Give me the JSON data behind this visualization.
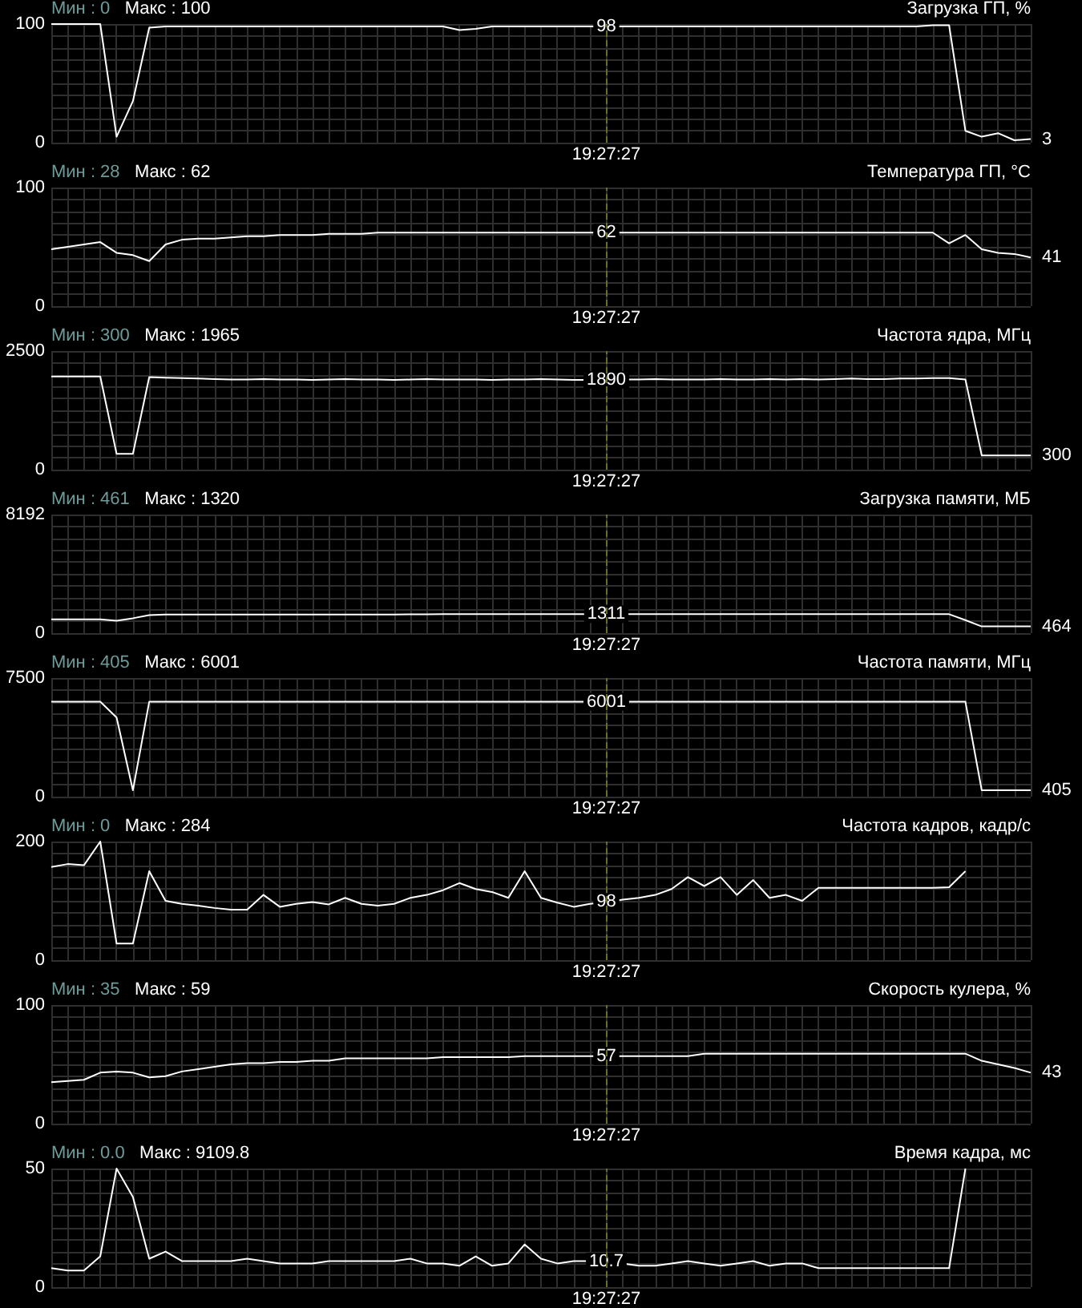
{
  "chart_data": [
    {
      "type": "line",
      "title": "Загрузка ГП, %",
      "annotations": [
        "Мин : 0",
        "Макс : 100"
      ],
      "categories": [
        null,
        null,
        null,
        null,
        null,
        null,
        null,
        null,
        null,
        null,
        null,
        null,
        null,
        null,
        null,
        null,
        null,
        null,
        null,
        null,
        null,
        null,
        null,
        null,
        null,
        null,
        null,
        null,
        null,
        null,
        null,
        null,
        null,
        null,
        "19:27:27",
        null,
        null,
        null,
        null,
        null,
        null,
        null,
        null,
        null,
        null,
        null,
        null,
        null,
        null,
        null,
        null,
        null,
        null,
        null,
        null,
        null,
        null,
        null,
        null,
        null,
        null
      ],
      "values": [
        100,
        100,
        100,
        100,
        5,
        35,
        97,
        98,
        98,
        98,
        98,
        98,
        98,
        98,
        98,
        98,
        98,
        98,
        98,
        98,
        98,
        98,
        98,
        98,
        98,
        95,
        96,
        98,
        98,
        98,
        98,
        98,
        98,
        98,
        98,
        98,
        98,
        98,
        98,
        98,
        98,
        98,
        98,
        98,
        98,
        98,
        98,
        98,
        98,
        98,
        98,
        98,
        98,
        98,
        99,
        99,
        10,
        5,
        8,
        2,
        3
      ],
      "value_labels": [
        null,
        null,
        null,
        null,
        null,
        null,
        null,
        null,
        null,
        null,
        null,
        null,
        null,
        null,
        null,
        null,
        null,
        null,
        null,
        null,
        null,
        null,
        null,
        null,
        null,
        null,
        null,
        null,
        null,
        null,
        null,
        null,
        null,
        null,
        "98",
        null,
        null,
        null,
        null,
        null,
        null,
        null,
        null,
        null,
        null,
        null,
        null,
        null,
        null,
        null,
        null,
        null,
        null,
        null,
        null,
        null,
        null,
        null,
        null,
        null,
        "3"
      ],
      "color": "#ffffff",
      "ylim": [
        0,
        100
      ],
      "yticks": [
        0,
        {
          "value": 10,
          "label": null
        },
        {
          "value": 20,
          "label": null
        },
        {
          "value": 30,
          "label": null
        },
        {
          "value": 40,
          "label": null
        },
        {
          "value": 50,
          "label": null
        },
        {
          "value": 60,
          "label": null
        },
        {
          "value": 70,
          "label": null
        },
        {
          "value": 80,
          "label": null
        },
        {
          "value": 90,
          "label": null
        },
        100
      ],
      "grid": true,
      "marker": "none",
      "line_style": "solid",
      "ref_lines": [
        {
          "axis": "x",
          "value": "19:27:27",
          "color": "#6b6b2a",
          "line_style": "dashed"
        }
      ]
    },
    {
      "type": "line",
      "title": "Температура ГП, °C",
      "annotations": [
        "Мин : 28",
        "Макс : 62"
      ],
      "categories": [
        null,
        null,
        null,
        null,
        null,
        null,
        null,
        null,
        null,
        null,
        null,
        null,
        null,
        null,
        null,
        null,
        null,
        null,
        null,
        null,
        null,
        null,
        null,
        null,
        null,
        null,
        null,
        null,
        null,
        null,
        null,
        null,
        null,
        null,
        "19:27:27",
        null,
        null,
        null,
        null,
        null,
        null,
        null,
        null,
        null,
        null,
        null,
        null,
        null,
        null,
        null,
        null,
        null,
        null,
        null,
        null,
        null,
        null,
        null,
        null,
        null,
        null
      ],
      "values": [
        48,
        50,
        52,
        54,
        45,
        43,
        38,
        52,
        56,
        57,
        57,
        58,
        59,
        59,
        60,
        60,
        60,
        61,
        61,
        61,
        62,
        62,
        62,
        62,
        62,
        62,
        62,
        62,
        62,
        62,
        62,
        62,
        62,
        62,
        62,
        62,
        62,
        62,
        62,
        62,
        62,
        62,
        62,
        62,
        62,
        62,
        62,
        62,
        62,
        62,
        62,
        62,
        62,
        62,
        62,
        53,
        60,
        48,
        45,
        44,
        41
      ],
      "value_labels": [
        null,
        null,
        null,
        null,
        null,
        null,
        null,
        null,
        null,
        null,
        null,
        null,
        null,
        null,
        null,
        null,
        null,
        null,
        null,
        null,
        null,
        null,
        null,
        null,
        null,
        null,
        null,
        null,
        null,
        null,
        null,
        null,
        null,
        null,
        "62",
        null,
        null,
        null,
        null,
        null,
        null,
        null,
        null,
        null,
        null,
        null,
        null,
        null,
        null,
        null,
        null,
        null,
        null,
        null,
        null,
        null,
        null,
        null,
        null,
        null,
        "41"
      ],
      "color": "#ffffff",
      "ylim": [
        0,
        100
      ],
      "yticks": [
        0,
        {
          "value": 10,
          "label": null
        },
        {
          "value": 20,
          "label": null
        },
        {
          "value": 30,
          "label": null
        },
        {
          "value": 40,
          "label": null
        },
        {
          "value": 50,
          "label": null
        },
        {
          "value": 60,
          "label": null
        },
        {
          "value": 70,
          "label": null
        },
        {
          "value": 80,
          "label": null
        },
        {
          "value": 90,
          "label": null
        },
        100
      ],
      "grid": true,
      "marker": "none",
      "line_style": "solid",
      "ref_lines": [
        {
          "axis": "x",
          "value": "19:27:27",
          "color": "#6b6b2a",
          "line_style": "dashed"
        }
      ]
    },
    {
      "type": "line",
      "title": "Частота ядра, МГц",
      "annotations": [
        "Мин : 300",
        "Макс : 1965"
      ],
      "categories": [
        null,
        null,
        null,
        null,
        null,
        null,
        null,
        null,
        null,
        null,
        null,
        null,
        null,
        null,
        null,
        null,
        null,
        null,
        null,
        null,
        null,
        null,
        null,
        null,
        null,
        null,
        null,
        null,
        null,
        null,
        null,
        null,
        null,
        null,
        "19:27:27",
        null,
        null,
        null,
        null,
        null,
        null,
        null,
        null,
        null,
        null,
        null,
        null,
        null,
        null,
        null,
        null,
        null,
        null,
        null,
        null,
        null,
        null,
        null,
        null,
        null,
        null
      ],
      "values": [
        1965,
        1965,
        1965,
        1965,
        334,
        334,
        1950,
        1940,
        1930,
        1920,
        1910,
        1900,
        1900,
        1910,
        1900,
        1900,
        1890,
        1900,
        1910,
        1900,
        1900,
        1890,
        1900,
        1910,
        1900,
        1900,
        1900,
        1890,
        1900,
        1900,
        1910,
        1900,
        1890,
        1890,
        1890,
        1900,
        1900,
        1910,
        1900,
        1900,
        1900,
        1910,
        1900,
        1900,
        1910,
        1900,
        1910,
        1900,
        1910,
        1920,
        1910,
        1910,
        1920,
        1920,
        1930,
        1930,
        1900,
        300,
        300,
        300,
        300
      ],
      "value_labels": [
        null,
        null,
        null,
        null,
        null,
        null,
        null,
        null,
        null,
        null,
        null,
        null,
        null,
        null,
        null,
        null,
        null,
        null,
        null,
        null,
        null,
        null,
        null,
        null,
        null,
        null,
        null,
        null,
        null,
        null,
        null,
        null,
        null,
        null,
        "1890",
        null,
        null,
        null,
        null,
        null,
        null,
        null,
        null,
        null,
        null,
        null,
        null,
        null,
        null,
        null,
        null,
        null,
        null,
        null,
        null,
        null,
        null,
        null,
        null,
        null,
        "300"
      ],
      "color": "#ffffff",
      "ylim": [
        0,
        2500
      ],
      "yticks": [
        0,
        {
          "value": 250,
          "label": null
        },
        {
          "value": 500,
          "label": null
        },
        {
          "value": 750,
          "label": null
        },
        {
          "value": 1000,
          "label": null
        },
        {
          "value": 1250,
          "label": null
        },
        {
          "value": 1500,
          "label": null
        },
        {
          "value": 1750,
          "label": null
        },
        {
          "value": 2000,
          "label": null
        },
        {
          "value": 2250,
          "label": null
        },
        2500
      ],
      "grid": true,
      "marker": "none",
      "line_style": "solid",
      "ref_lines": [
        {
          "axis": "x",
          "value": "19:27:27",
          "color": "#6b6b2a",
          "line_style": "dashed"
        }
      ]
    },
    {
      "type": "line",
      "title": "Загрузка памяти, МБ",
      "annotations": [
        "Мин : 461",
        "Макс : 1320"
      ],
      "categories": [
        null,
        null,
        null,
        null,
        null,
        null,
        null,
        null,
        null,
        null,
        null,
        null,
        null,
        null,
        null,
        null,
        null,
        null,
        null,
        null,
        null,
        null,
        null,
        null,
        null,
        null,
        null,
        null,
        null,
        null,
        null,
        null,
        null,
        null,
        "19:27:27",
        null,
        null,
        null,
        null,
        null,
        null,
        null,
        null,
        null,
        null,
        null,
        null,
        null,
        null,
        null,
        null,
        null,
        null,
        null,
        null,
        null,
        null,
        null,
        null,
        null,
        null
      ],
      "values": [
        950,
        950,
        950,
        950,
        860,
        1030,
        1250,
        1290,
        1290,
        1290,
        1290,
        1290,
        1290,
        1290,
        1290,
        1290,
        1290,
        1290,
        1290,
        1290,
        1290,
        1290,
        1300,
        1300,
        1320,
        1320,
        1320,
        1320,
        1320,
        1320,
        1320,
        1311,
        1311,
        1311,
        1311,
        1311,
        1311,
        1311,
        1311,
        1311,
        1311,
        1311,
        1311,
        1311,
        1311,
        1311,
        1311,
        1311,
        1311,
        1311,
        1311,
        1311,
        1311,
        1311,
        1311,
        1311,
        900,
        464,
        464,
        464,
        464
      ],
      "value_labels": [
        null,
        null,
        null,
        null,
        null,
        null,
        null,
        null,
        null,
        null,
        null,
        null,
        null,
        null,
        null,
        null,
        null,
        null,
        null,
        null,
        null,
        null,
        null,
        null,
        null,
        null,
        null,
        null,
        null,
        null,
        null,
        null,
        null,
        null,
        "1311",
        null,
        null,
        null,
        null,
        null,
        null,
        null,
        null,
        null,
        null,
        null,
        null,
        null,
        null,
        null,
        null,
        null,
        null,
        null,
        null,
        null,
        null,
        null,
        null,
        null,
        "464"
      ],
      "color": "#ffffff",
      "ylim": [
        0,
        8192
      ],
      "yticks": [
        0,
        {
          "value": 819.2,
          "label": null
        },
        {
          "value": 1638.4,
          "label": null
        },
        {
          "value": 2457.6,
          "label": null
        },
        {
          "value": 3276.8,
          "label": null
        },
        {
          "value": 4096,
          "label": null
        },
        {
          "value": 4915.2,
          "label": null
        },
        {
          "value": 5734.4,
          "label": null
        },
        {
          "value": 6553.6,
          "label": null
        },
        {
          "value": 7372.8,
          "label": null
        },
        8192
      ],
      "grid": true,
      "marker": "none",
      "line_style": "solid",
      "ref_lines": [
        {
          "axis": "x",
          "value": "19:27:27",
          "color": "#6b6b2a",
          "line_style": "dashed"
        }
      ]
    },
    {
      "type": "line",
      "title": "Частота памяти, МГц",
      "annotations": [
        "Мин : 405",
        "Макс : 6001"
      ],
      "categories": [
        null,
        null,
        null,
        null,
        null,
        null,
        null,
        null,
        null,
        null,
        null,
        null,
        null,
        null,
        null,
        null,
        null,
        null,
        null,
        null,
        null,
        null,
        null,
        null,
        null,
        null,
        null,
        null,
        null,
        null,
        null,
        null,
        null,
        null,
        "19:27:27",
        null,
        null,
        null,
        null,
        null,
        null,
        null,
        null,
        null,
        null,
        null,
        null,
        null,
        null,
        null,
        null,
        null,
        null,
        null,
        null,
        null,
        null,
        null,
        null,
        null,
        null
      ],
      "values": [
        6001,
        6001,
        6001,
        6001,
        5000,
        405,
        6001,
        6001,
        6001,
        6001,
        6001,
        6001,
        6001,
        6001,
        6001,
        6001,
        6001,
        6001,
        6001,
        6001,
        6001,
        6001,
        6001,
        6001,
        6001,
        6001,
        6001,
        6001,
        6001,
        6001,
        6001,
        6001,
        6001,
        6001,
        6001,
        6001,
        6001,
        6001,
        6001,
        6001,
        6001,
        6001,
        6001,
        6001,
        6001,
        6001,
        6001,
        6001,
        6001,
        6001,
        6001,
        6001,
        6001,
        6001,
        6001,
        6001,
        6001,
        405,
        405,
        405,
        405
      ],
      "value_labels": [
        null,
        null,
        null,
        null,
        null,
        null,
        null,
        null,
        null,
        null,
        null,
        null,
        null,
        null,
        null,
        null,
        null,
        null,
        null,
        null,
        null,
        null,
        null,
        null,
        null,
        null,
        null,
        null,
        null,
        null,
        null,
        null,
        null,
        null,
        "6001",
        null,
        null,
        null,
        null,
        null,
        null,
        null,
        null,
        null,
        null,
        null,
        null,
        null,
        null,
        null,
        null,
        null,
        null,
        null,
        null,
        null,
        null,
        null,
        null,
        null,
        "405"
      ],
      "color": "#ffffff",
      "ylim": [
        0,
        7500
      ],
      "yticks": [
        0,
        {
          "value": 750,
          "label": null
        },
        {
          "value": 1500,
          "label": null
        },
        {
          "value": 2250,
          "label": null
        },
        {
          "value": 3000,
          "label": null
        },
        {
          "value": 3750,
          "label": null
        },
        {
          "value": 4500,
          "label": null
        },
        {
          "value": 5250,
          "label": null
        },
        {
          "value": 6000,
          "label": null
        },
        {
          "value": 6750,
          "label": null
        },
        7500
      ],
      "grid": true,
      "marker": "none",
      "line_style": "solid",
      "ref_lines": [
        {
          "axis": "x",
          "value": "19:27:27",
          "color": "#6b6b2a",
          "line_style": "dashed"
        }
      ]
    },
    {
      "type": "line",
      "title": "Частота кадров, кадр/с",
      "annotations": [
        "Мин : 0",
        "Макс : 284"
      ],
      "categories": [
        null,
        null,
        null,
        null,
        null,
        null,
        null,
        null,
        null,
        null,
        null,
        null,
        null,
        null,
        null,
        null,
        null,
        null,
        null,
        null,
        null,
        null,
        null,
        null,
        null,
        null,
        null,
        null,
        null,
        null,
        null,
        null,
        null,
        null,
        "19:27:27",
        null,
        null,
        null,
        null,
        null,
        null,
        null,
        null,
        null,
        null,
        null,
        null,
        null,
        null,
        null,
        null,
        null,
        null,
        null,
        null,
        null,
        null,
        null,
        null,
        null,
        null
      ],
      "values": [
        157,
        162,
        160,
        200,
        28,
        28,
        150,
        100,
        95,
        92,
        88,
        85,
        85,
        110,
        90,
        95,
        98,
        94,
        105,
        95,
        92,
        95,
        105,
        110,
        118,
        130,
        120,
        115,
        105,
        150,
        105,
        97,
        90,
        95,
        98,
        102,
        105,
        110,
        120,
        140,
        125,
        140,
        110,
        135,
        105,
        110,
        100,
        122,
        122,
        122,
        122,
        122,
        122,
        122,
        122,
        123,
        150,
        null,
        null,
        null,
        null
      ],
      "value_labels": [
        null,
        null,
        null,
        null,
        null,
        null,
        null,
        null,
        null,
        null,
        null,
        null,
        null,
        null,
        null,
        null,
        null,
        null,
        null,
        null,
        null,
        null,
        null,
        null,
        null,
        null,
        null,
        null,
        null,
        null,
        null,
        null,
        null,
        null,
        "98",
        null,
        null,
        null,
        null,
        null,
        null,
        null,
        null,
        null,
        null,
        null,
        null,
        null,
        null,
        null,
        null,
        null,
        null,
        null,
        null,
        null,
        null,
        null,
        null,
        null,
        null
      ],
      "color": "#ffffff",
      "ylim": [
        0,
        200
      ],
      "yticks": [
        0,
        {
          "value": 20,
          "label": null
        },
        {
          "value": 40,
          "label": null
        },
        {
          "value": 60,
          "label": null
        },
        {
          "value": 80,
          "label": null
        },
        {
          "value": 100,
          "label": null
        },
        {
          "value": 120,
          "label": null
        },
        {
          "value": 140,
          "label": null
        },
        {
          "value": 160,
          "label": null
        },
        {
          "value": 180,
          "label": null
        },
        200
      ],
      "grid": true,
      "marker": "none",
      "line_style": "solid",
      "ref_lines": [
        {
          "axis": "x",
          "value": "19:27:27",
          "color": "#6b6b2a",
          "line_style": "dashed"
        }
      ]
    },
    {
      "type": "line",
      "title": "Скорость кулера, %",
      "annotations": [
        "Мин : 35",
        "Макс : 59"
      ],
      "categories": [
        null,
        null,
        null,
        null,
        null,
        null,
        null,
        null,
        null,
        null,
        null,
        null,
        null,
        null,
        null,
        null,
        null,
        null,
        null,
        null,
        null,
        null,
        null,
        null,
        null,
        null,
        null,
        null,
        null,
        null,
        null,
        null,
        null,
        null,
        "19:27:27",
        null,
        null,
        null,
        null,
        null,
        null,
        null,
        null,
        null,
        null,
        null,
        null,
        null,
        null,
        null,
        null,
        null,
        null,
        null,
        null,
        null,
        null,
        null,
        null,
        null,
        null
      ],
      "values": [
        35,
        36,
        37,
        43,
        44,
        43,
        39,
        40,
        44,
        46,
        48,
        50,
        51,
        51,
        52,
        52,
        53,
        53,
        55,
        55,
        55,
        55,
        55,
        55,
        56,
        56,
        56,
        56,
        56,
        57,
        57,
        57,
        57,
        57,
        57,
        57,
        57,
        57,
        57,
        57,
        59,
        59,
        59,
        59,
        59,
        59,
        59,
        59,
        59,
        59,
        59,
        59,
        59,
        59,
        59,
        59,
        59,
        53,
        50,
        47,
        43
      ],
      "value_labels": [
        null,
        null,
        null,
        null,
        null,
        null,
        null,
        null,
        null,
        null,
        null,
        null,
        null,
        null,
        null,
        null,
        null,
        null,
        null,
        null,
        null,
        null,
        null,
        null,
        null,
        null,
        null,
        null,
        null,
        null,
        null,
        null,
        null,
        null,
        "57",
        null,
        null,
        null,
        null,
        null,
        null,
        null,
        null,
        null,
        null,
        null,
        null,
        null,
        null,
        null,
        null,
        null,
        null,
        null,
        null,
        null,
        null,
        null,
        null,
        null,
        "43"
      ],
      "color": "#ffffff",
      "ylim": [
        0,
        100
      ],
      "yticks": [
        0,
        {
          "value": 10,
          "label": null
        },
        {
          "value": 20,
          "label": null
        },
        {
          "value": 30,
          "label": null
        },
        {
          "value": 40,
          "label": null
        },
        {
          "value": 50,
          "label": null
        },
        {
          "value": 60,
          "label": null
        },
        {
          "value": 70,
          "label": null
        },
        {
          "value": 80,
          "label": null
        },
        {
          "value": 90,
          "label": null
        },
        100
      ],
      "grid": true,
      "marker": "none",
      "line_style": "solid",
      "ref_lines": [
        {
          "axis": "x",
          "value": "19:27:27",
          "color": "#6b6b2a",
          "line_style": "dashed"
        }
      ]
    },
    {
      "type": "line",
      "title": "Время кадра, мс",
      "annotations": [
        "Мин : 0.0",
        "Макс : 9109.8"
      ],
      "categories": [
        null,
        null,
        null,
        null,
        null,
        null,
        null,
        null,
        null,
        null,
        null,
        null,
        null,
        null,
        null,
        null,
        null,
        null,
        null,
        null,
        null,
        null,
        null,
        null,
        null,
        null,
        null,
        null,
        null,
        null,
        null,
        null,
        null,
        null,
        "19:27:27",
        null,
        null,
        null,
        null,
        null,
        null,
        null,
        null,
        null,
        null,
        null,
        null,
        null,
        null,
        null,
        null,
        null,
        null,
        null,
        null,
        null,
        null,
        null,
        null,
        null,
        null
      ],
      "values": [
        8,
        7,
        7,
        13,
        50,
        38,
        12,
        15,
        11,
        11,
        11,
        11,
        12,
        11,
        10,
        10,
        10,
        11,
        11,
        11,
        11,
        11,
        12,
        10,
        10,
        9,
        13,
        9,
        10,
        18,
        12,
        10,
        11,
        11,
        10.7,
        10,
        9,
        9,
        10,
        11,
        10,
        9,
        10,
        11,
        9,
        10,
        10,
        8,
        8,
        8,
        8,
        8,
        8,
        8,
        8,
        8,
        50,
        null,
        null,
        null,
        null
      ],
      "value_labels": [
        null,
        null,
        null,
        null,
        null,
        null,
        null,
        null,
        null,
        null,
        null,
        null,
        null,
        null,
        null,
        null,
        null,
        null,
        null,
        null,
        null,
        null,
        null,
        null,
        null,
        null,
        null,
        null,
        null,
        null,
        null,
        null,
        null,
        null,
        "10.7",
        null,
        null,
        null,
        null,
        null,
        null,
        null,
        null,
        null,
        null,
        null,
        null,
        null,
        null,
        null,
        null,
        null,
        null,
        null,
        null,
        null,
        null,
        null,
        null,
        null,
        null
      ],
      "color": "#ffffff",
      "ylim": [
        0,
        50
      ],
      "yticks": [
        0,
        {
          "value": 5,
          "label": null
        },
        {
          "value": 10,
          "label": null
        },
        {
          "value": 15,
          "label": null
        },
        {
          "value": 20,
          "label": null
        },
        {
          "value": 25,
          "label": null
        },
        {
          "value": 30,
          "label": null
        },
        {
          "value": 35,
          "label": null
        },
        {
          "value": 40,
          "label": null
        },
        {
          "value": 45,
          "label": null
        },
        50
      ],
      "grid": true,
      "marker": "none",
      "line_style": "solid",
      "ref_lines": [
        {
          "axis": "x",
          "value": "19:27:27",
          "color": "#6b6b2a",
          "line_style": "dashed"
        }
      ]
    }
  ]
}
